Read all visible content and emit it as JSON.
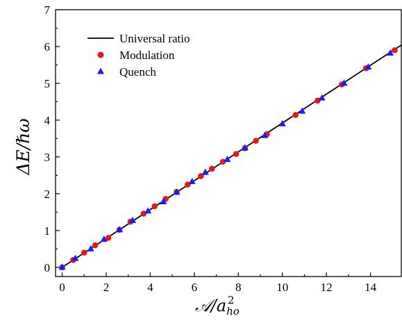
{
  "chart_data": {
    "type": "scatter",
    "xlabel": "𝒜/a",
    "xlabel_sub": "ho",
    "xlabel_sup": "2",
    "ylabel": "ΔE/ℏω",
    "xlim": [
      -0.3,
      15.4
    ],
    "ylim": [
      -0.25,
      7
    ],
    "x_ticks": [
      0,
      2,
      4,
      6,
      8,
      10,
      12,
      14
    ],
    "y_ticks": [
      0,
      1,
      2,
      3,
      4,
      5,
      6,
      7
    ],
    "grid": false,
    "legend_position": "top-left",
    "series": [
      {
        "name": "Universal ratio",
        "kind": "line",
        "color": "#000000",
        "x": [
          0,
          15.4
        ],
        "y": [
          0,
          6.04
        ]
      },
      {
        "name": "Modulation",
        "kind": "circle",
        "color": "#e31a1c",
        "x": [
          0,
          0.5,
          1.0,
          1.5,
          2.1,
          2.6,
          3.1,
          3.7,
          4.2,
          4.7,
          5.2,
          5.7,
          6.3,
          6.8,
          7.3,
          7.9,
          8.3,
          8.8,
          9.3,
          10.6,
          11.6,
          12.7,
          13.8,
          15.1
        ],
        "y": [
          0,
          0.2,
          0.4,
          0.6,
          0.8,
          1.02,
          1.24,
          1.46,
          1.66,
          1.86,
          2.05,
          2.25,
          2.48,
          2.68,
          2.87,
          3.08,
          3.24,
          3.44,
          3.62,
          4.14,
          4.53,
          4.97,
          5.41,
          5.9
        ]
      },
      {
        "name": "Quench",
        "kind": "triangle",
        "color": "#1a1aff",
        "x": [
          0,
          0.6,
          1.3,
          1.9,
          2.6,
          3.2,
          3.9,
          4.6,
          5.2,
          5.9,
          6.5,
          7.5,
          8.3,
          9.2,
          10.0,
          10.9,
          11.8,
          12.8,
          13.9,
          14.9
        ],
        "y": [
          0,
          0.24,
          0.5,
          0.76,
          1.02,
          1.27,
          1.53,
          1.78,
          2.04,
          2.33,
          2.58,
          2.93,
          3.24,
          3.58,
          3.9,
          4.24,
          4.6,
          5.0,
          5.44,
          5.82
        ]
      }
    ]
  }
}
